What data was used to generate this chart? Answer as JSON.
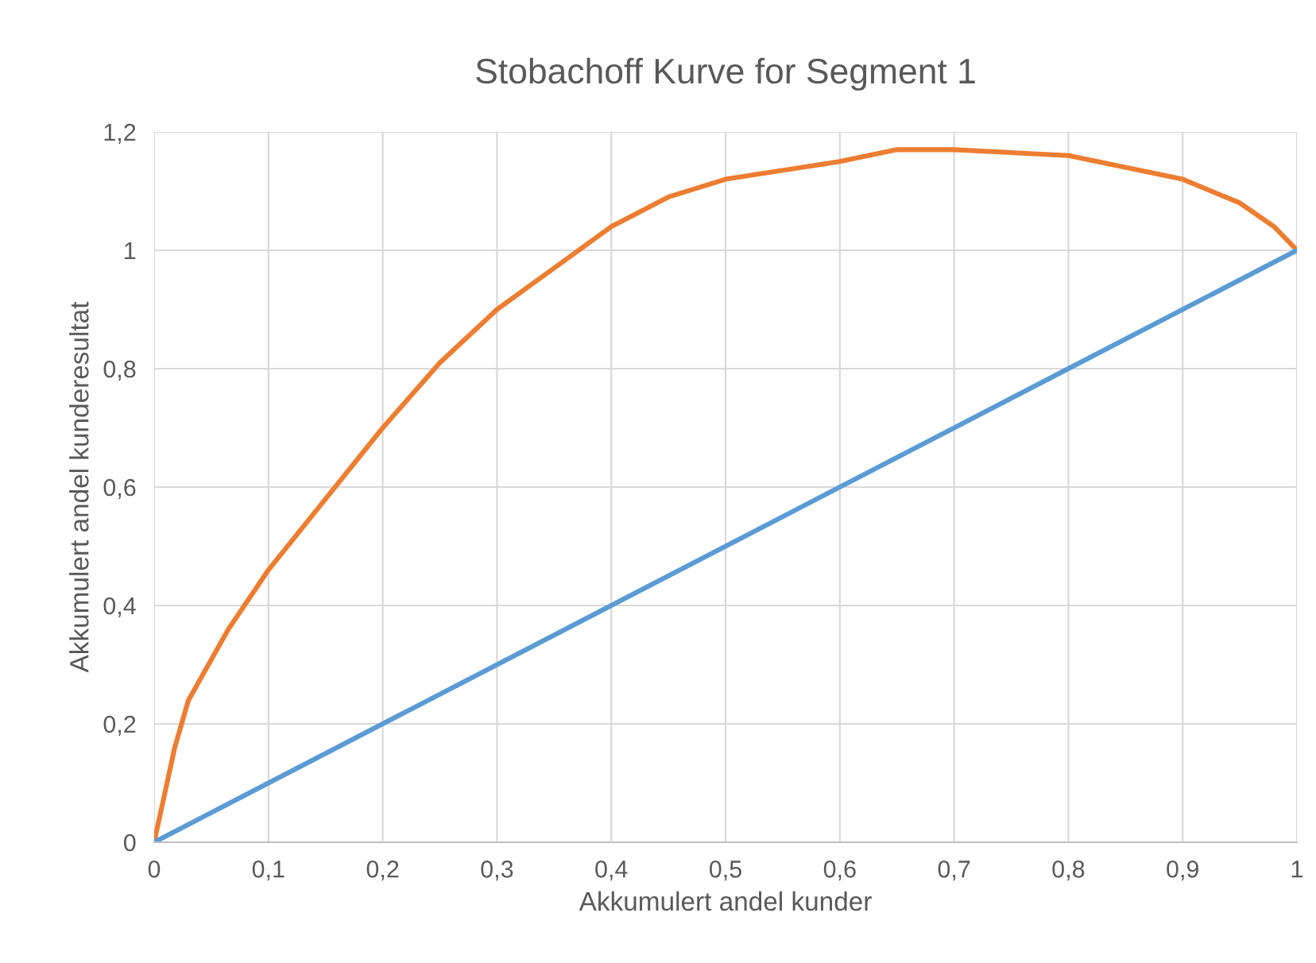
{
  "chart_data": {
    "type": "line",
    "title": "Stobachoff Kurve for Segment 1",
    "xlabel": "Akkumulert andel kunder",
    "ylabel": "Akkumulert andel kunderesultat",
    "series": [
      {
        "color": "#ed7d31",
        "x": [
          0,
          0.018,
          0.03,
          0.065,
          0.1,
          0.15,
          0.2,
          0.25,
          0.3,
          0.35,
          0.4,
          0.45,
          0.5,
          0.6,
          0.65,
          0.7,
          0.8,
          0.9,
          0.95,
          0.98,
          1
        ],
        "values": [
          0,
          0.16,
          0.24,
          0.36,
          0.46,
          0.58,
          0.7,
          0.81,
          0.9,
          0.97,
          1.04,
          1.09,
          1.12,
          1.15,
          1.17,
          1.17,
          1.16,
          1.12,
          1.08,
          1.04,
          1
        ]
      },
      {
        "color": "#5b9bd5",
        "x": [
          0,
          1
        ],
        "values": [
          0,
          1
        ]
      }
    ],
    "xlim": [
      0,
      1
    ],
    "ylim": [
      0,
      1.2
    ],
    "xticks": [
      0,
      {
        "value": 0.1,
        "label": "0,1"
      },
      {
        "value": 0.2,
        "label": "0,2"
      },
      {
        "value": 0.3,
        "label": "0,3"
      },
      {
        "value": 0.4,
        "label": "0,4"
      },
      {
        "value": 0.5,
        "label": "0,5"
      },
      {
        "value": 0.6,
        "label": "0,6"
      },
      {
        "value": 0.7,
        "label": "0,7"
      },
      {
        "value": 0.8,
        "label": "0,8"
      },
      {
        "value": 0.9,
        "label": "0,9"
      },
      1
    ],
    "yticks": [
      0,
      {
        "value": 0.2,
        "label": "0,2"
      },
      {
        "value": 0.4,
        "label": "0,4"
      },
      {
        "value": 0.6,
        "label": "0,6"
      },
      {
        "value": 0.8,
        "label": "0,8"
      },
      1,
      {
        "value": 1.2,
        "label": "1,2"
      }
    ],
    "grid": true,
    "marker": "none",
    "line_style": "solid"
  }
}
